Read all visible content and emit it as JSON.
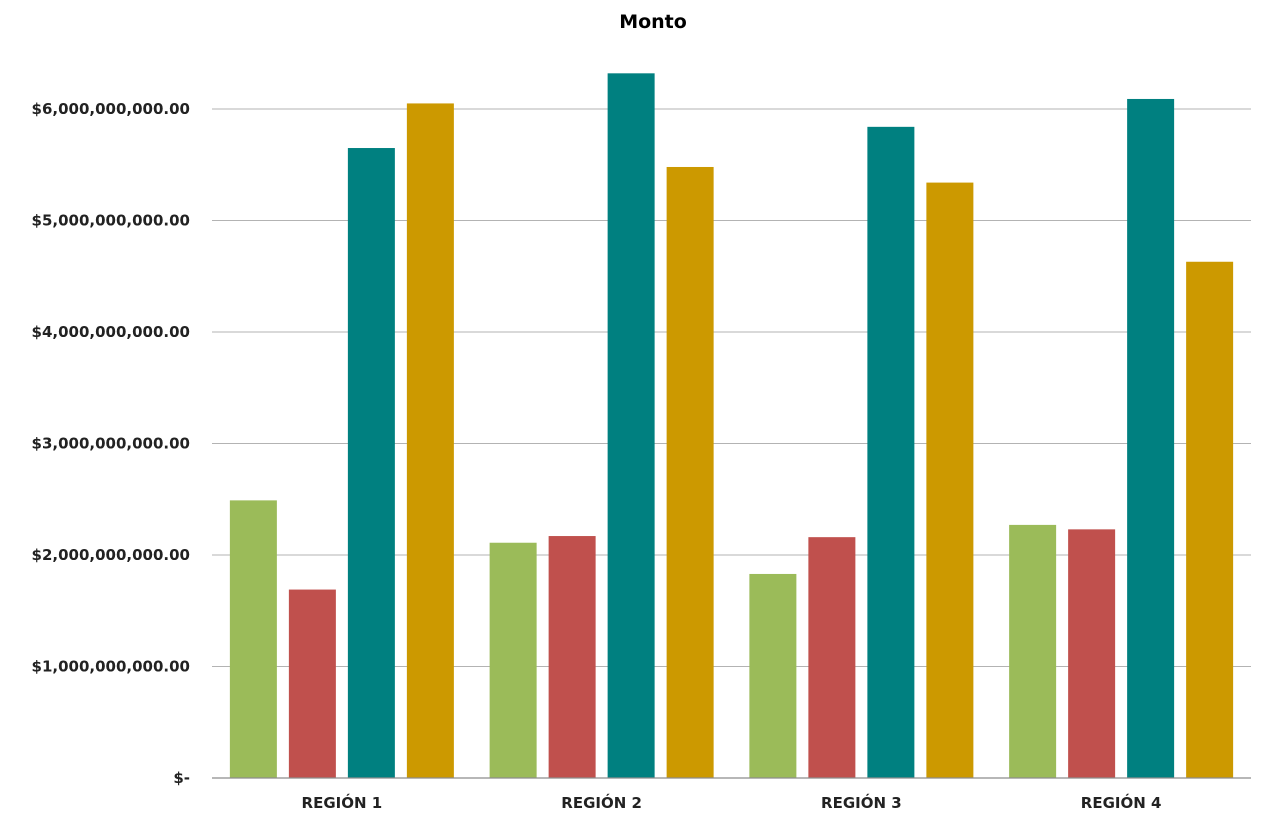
{
  "chart_data": {
    "type": "bar",
    "title": "Monto",
    "xlabel": "",
    "ylabel": "",
    "categories": [
      "REGIÓN 1",
      "REGIÓN 2",
      "REGIÓN 3",
      "REGIÓN 4"
    ],
    "series": [
      {
        "color": "#9bbb59",
        "values": [
          2490000000,
          2110000000,
          1830000000,
          2270000000
        ]
      },
      {
        "color": "#c0504d",
        "values": [
          1690000000,
          2170000000,
          2160000000,
          2230000000
        ]
      },
      {
        "color": "#008080",
        "values": [
          5650000000,
          6320000000,
          5840000000,
          6090000000
        ]
      },
      {
        "color": "#cc9900",
        "values": [
          6050000000,
          5480000000,
          5340000000,
          4630000000
        ]
      }
    ],
    "ylim": [
      0,
      6000000000
    ],
    "yticks": [
      0,
      1000000000,
      2000000000,
      3000000000,
      4000000000,
      5000000000,
      6000000000
    ],
    "ytick_labels": [
      "$-",
      "$1,000,000,000.00",
      "$2,000,000,000.00",
      "$3,000,000,000.00",
      "$4,000,000,000.00",
      "$5,000,000,000.00",
      "$6,000,000,000.00"
    ],
    "grid": true,
    "legend": "none"
  }
}
